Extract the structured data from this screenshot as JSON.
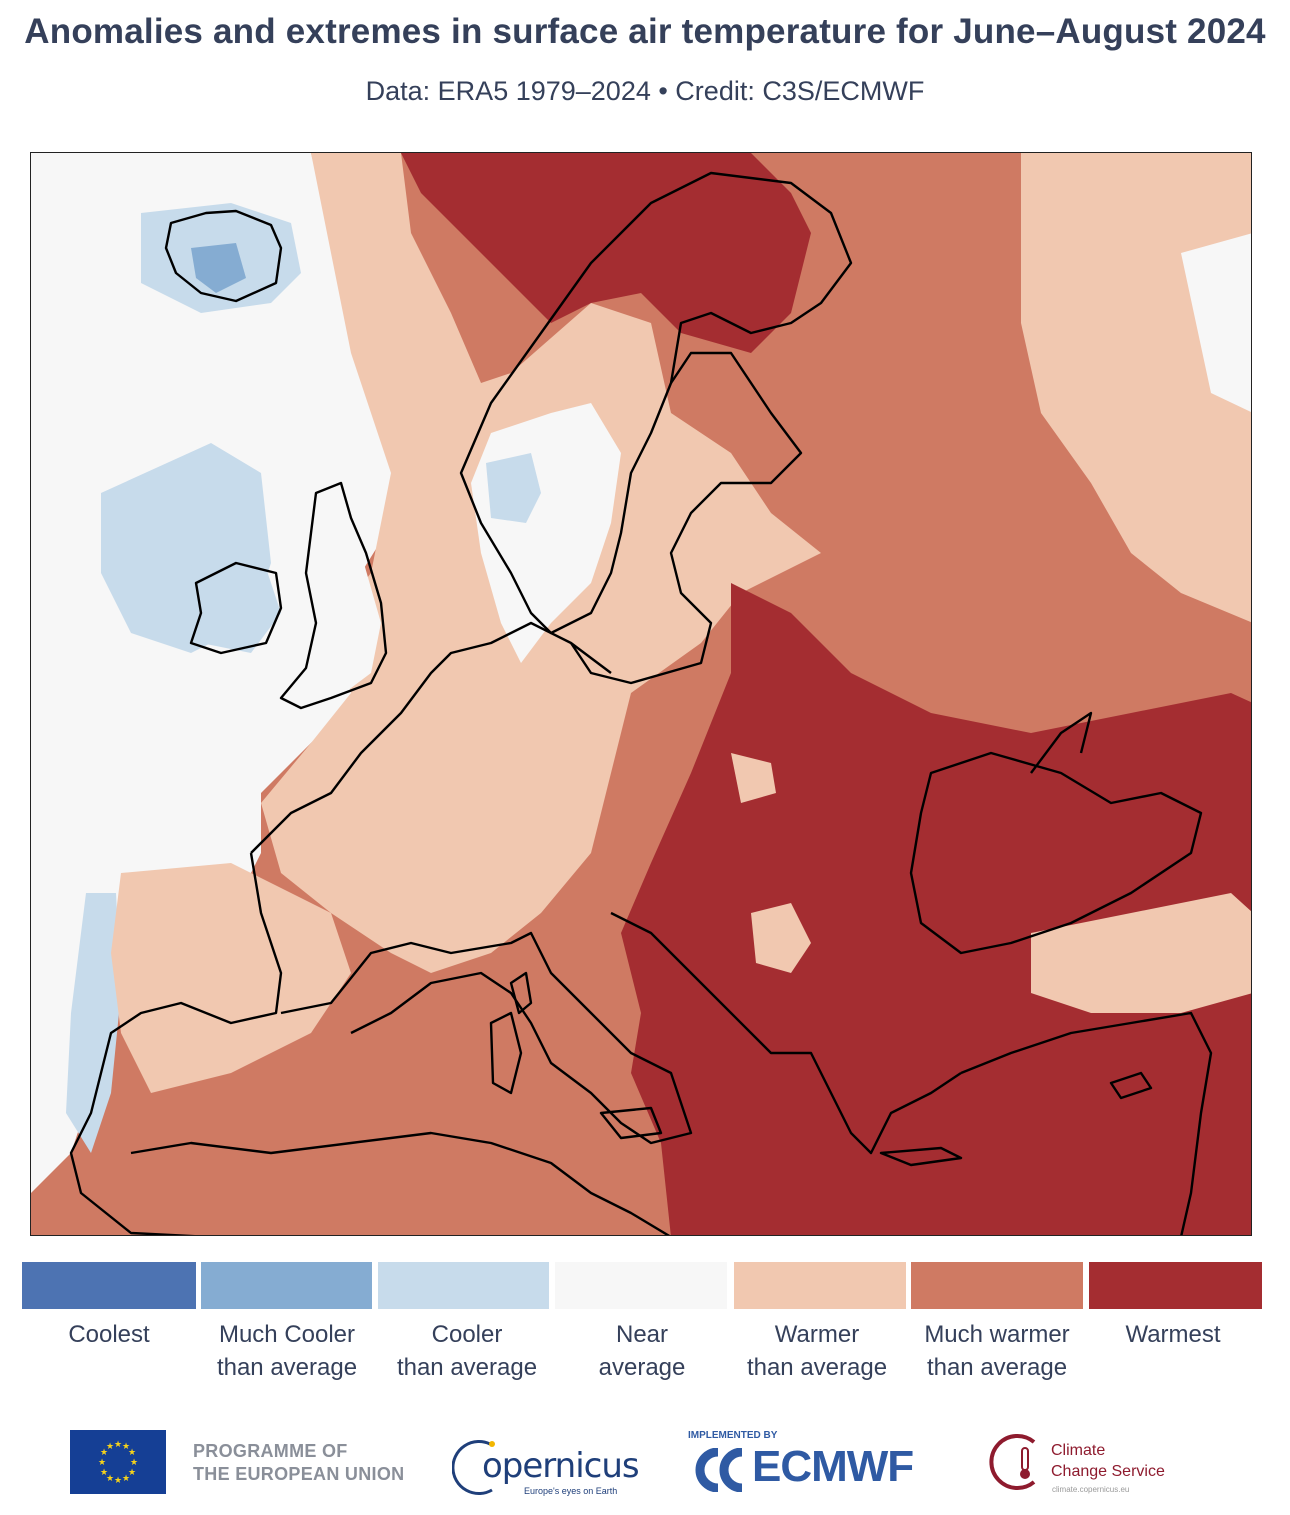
{
  "title": "Anomalies and extremes in surface air temperature for June–August 2024",
  "subtitle": "Data: ERA5 1979–2024 • Credit: C3S/ECMWF",
  "legend": [
    {
      "label_line1": "Coolest",
      "label_line2": "",
      "color": "#4d73b2"
    },
    {
      "label_line1": "Much Cooler",
      "label_line2": "than average",
      "color": "#85acd2"
    },
    {
      "label_line1": "Cooler",
      "label_line2": "than average",
      "color": "#c7dbeb"
    },
    {
      "label_line1": "Near",
      "label_line2": "average",
      "color": "#f7f7f7"
    },
    {
      "label_line1": "Warmer",
      "label_line2": "than average",
      "color": "#f1c8b0"
    },
    {
      "label_line1": "Much warmer",
      "label_line2": "than average",
      "color": "#cf7a63"
    },
    {
      "label_line1": "Warmest",
      "label_line2": "",
      "color": "#a42d31"
    }
  ],
  "logos": {
    "eu_line1": "PROGRAMME OF",
    "eu_line2": "THE EUROPEAN UNION",
    "copernicus": "opernicus",
    "copernicus_tagline": "Europe's eyes on Earth",
    "ecmwf_implemented": "IMPLEMENTED BY",
    "ecmwf": "ECMWF",
    "c3s_line1": "Climate",
    "c3s_line2": "Change Service",
    "c3s_url": "climate.copernicus.eu"
  }
}
